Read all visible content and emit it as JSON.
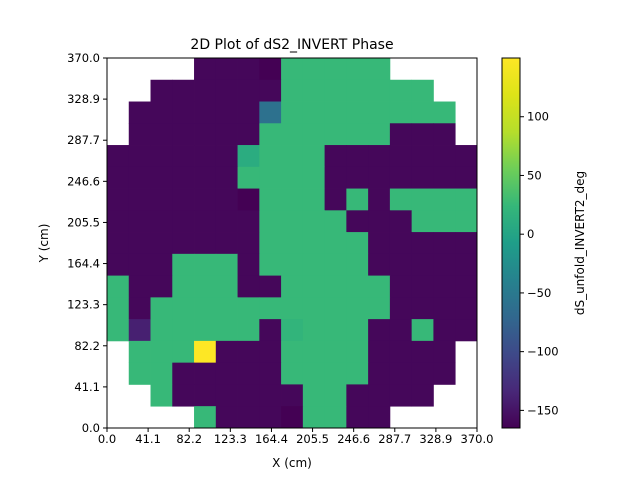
{
  "chart_data": {
    "type": "heatmap",
    "title": "2D Plot of dS2_INVERT Phase",
    "xlabel": "X (cm)",
    "ylabel": "Y (cm)",
    "xlim": [
      0,
      370
    ],
    "ylim": [
      0,
      370
    ],
    "xticks": [
      "0.0",
      "41.1",
      "82.2",
      "123.3",
      "164.4",
      "205.5",
      "246.6",
      "287.7",
      "328.9",
      "370.0"
    ],
    "yticks": [
      "0.0",
      "41.1",
      "82.2",
      "123.3",
      "164.4",
      "205.5",
      "246.6",
      "287.7",
      "328.9",
      "370.0"
    ],
    "grid": false,
    "colormap": "viridis",
    "colorbar": {
      "label": "dS_unfold_INVERT2_deg",
      "range": [
        -165,
        150
      ],
      "ticks": [
        "100",
        "50",
        "0",
        "−50",
        "−100",
        "−150"
      ]
    },
    "cell_size_cm": 21.76,
    "rows_from_top": [
      [
        null,
        null,
        null,
        null,
        -160,
        -160,
        -160,
        -165,
        25,
        25,
        25,
        25,
        25,
        null,
        null,
        null,
        null
      ],
      [
        null,
        null,
        -160,
        -160,
        -160,
        -160,
        -160,
        -160,
        25,
        25,
        25,
        25,
        25,
        25,
        25,
        null,
        null
      ],
      [
        null,
        -160,
        -160,
        -160,
        -160,
        -160,
        -160,
        -60,
        25,
        25,
        25,
        25,
        25,
        25,
        25,
        25,
        null
      ],
      [
        null,
        -160,
        -160,
        -160,
        -160,
        -160,
        -160,
        25,
        25,
        25,
        25,
        25,
        25,
        -160,
        -160,
        -160,
        null
      ],
      [
        -160,
        -160,
        -160,
        -160,
        -160,
        -160,
        10,
        25,
        25,
        25,
        -160,
        -160,
        -160,
        -160,
        -160,
        -160,
        -160
      ],
      [
        -160,
        -160,
        -160,
        -160,
        -160,
        -160,
        25,
        25,
        25,
        25,
        -160,
        -160,
        -160,
        -160,
        -160,
        -160,
        -160
      ],
      [
        -160,
        -160,
        -160,
        -160,
        -160,
        -160,
        -165,
        25,
        25,
        25,
        -160,
        25,
        -160,
        25,
        25,
        25,
        25
      ],
      [
        -160,
        -160,
        -160,
        -160,
        -160,
        -160,
        -160,
        25,
        25,
        25,
        25,
        -160,
        -160,
        -160,
        25,
        25,
        25
      ],
      [
        -160,
        -160,
        -160,
        -160,
        -160,
        -160,
        -160,
        25,
        25,
        25,
        25,
        25,
        -160,
        -160,
        -160,
        -160,
        -160
      ],
      [
        -160,
        -160,
        -160,
        25,
        25,
        25,
        -160,
        25,
        25,
        25,
        25,
        25,
        -160,
        -160,
        -160,
        -160,
        -160
      ],
      [
        25,
        -160,
        -160,
        25,
        25,
        25,
        -160,
        -160,
        25,
        25,
        25,
        25,
        25,
        -160,
        -160,
        -160,
        -160
      ],
      [
        25,
        -160,
        25,
        25,
        25,
        25,
        25,
        25,
        25,
        25,
        25,
        25,
        25,
        -160,
        -160,
        -160,
        -160
      ],
      [
        25,
        -140,
        25,
        25,
        25,
        25,
        25,
        -160,
        20,
        25,
        25,
        25,
        -160,
        -160,
        25,
        -160,
        -160
      ],
      [
        null,
        25,
        25,
        25,
        150,
        -160,
        -160,
        -160,
        25,
        25,
        25,
        25,
        -160,
        -160,
        -160,
        -160,
        null
      ],
      [
        null,
        25,
        25,
        -160,
        -160,
        -160,
        -160,
        -160,
        25,
        25,
        25,
        25,
        -160,
        -160,
        -160,
        -160,
        null
      ],
      [
        null,
        null,
        25,
        -160,
        -160,
        -160,
        -160,
        -160,
        -160,
        25,
        25,
        -160,
        -160,
        -160,
        -160,
        null,
        null
      ],
      [
        null,
        null,
        null,
        null,
        25,
        -160,
        -160,
        -160,
        -165,
        25,
        25,
        -160,
        -160,
        null,
        null,
        null,
        null
      ]
    ]
  }
}
